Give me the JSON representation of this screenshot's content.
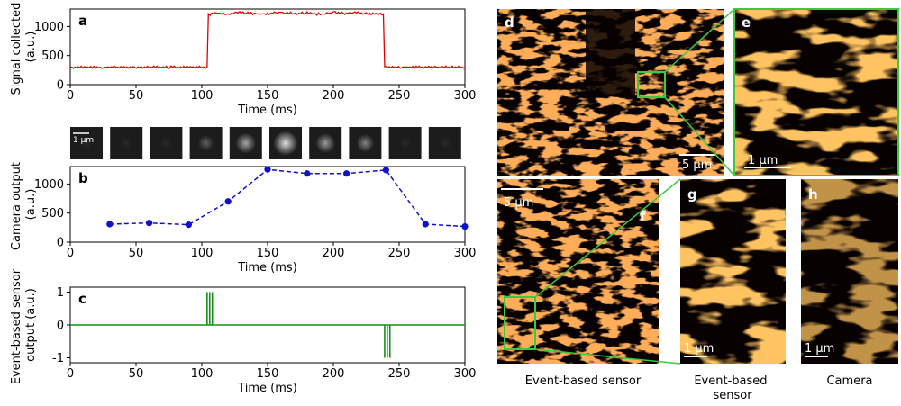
{
  "colors": {
    "signal_line": "#e00000",
    "camera_line": "#1010cc",
    "event_line": "#129212",
    "inset_border": "#3ec83e",
    "micro_background": "#080101"
  },
  "icons": {
    "camera_frame": "psf-spot-icon",
    "micrograph": "microtubule-image-icon"
  },
  "chart_data": [
    {
      "panel": "a",
      "type": "line",
      "xlabel": "Time (ms)",
      "ylabel": "Signal collected (a.u.)",
      "xlim": [
        0,
        300
      ],
      "ylim": [
        0,
        1300
      ],
      "xticks": [
        0,
        50,
        100,
        150,
        200,
        250,
        300
      ],
      "yticks": [
        0,
        500,
        1000
      ],
      "grid": false,
      "series": [
        {
          "x": [
            0,
            103,
            104,
            105,
            110,
            120,
            130,
            140,
            150,
            160,
            170,
            180,
            190,
            200,
            210,
            220,
            230,
            238,
            239,
            240,
            300
          ],
          "values": [
            300,
            300,
            300,
            1200,
            1235,
            1210,
            1240,
            1220,
            1215,
            1245,
            1220,
            1230,
            1210,
            1240,
            1225,
            1235,
            1215,
            1215,
            300,
            300,
            300
          ]
        }
      ]
    },
    {
      "panel": "b",
      "type": "line",
      "xlabel": "Time (ms)",
      "ylabel": "Camera output (a.u.)",
      "xlim": [
        0,
        300
      ],
      "ylim": [
        0,
        1300
      ],
      "xticks": [
        0,
        50,
        100,
        150,
        200,
        250,
        300
      ],
      "yticks": [
        0,
        500,
        1000
      ],
      "grid": false,
      "series": [
        {
          "x": [
            30,
            60,
            90,
            120,
            150,
            180,
            210,
            240,
            270,
            300
          ],
          "values": [
            310,
            330,
            300,
            700,
            1250,
            1180,
            1180,
            1240,
            310,
            270
          ]
        }
      ],
      "camera_frames": {
        "scale_label": "1 μm",
        "intensities": [
          0.06,
          0.06,
          0.06,
          0.3,
          0.6,
          0.85,
          0.55,
          0.45,
          0.06,
          0.06
        ]
      }
    },
    {
      "panel": "c",
      "type": "line",
      "xlabel": "Time (ms)",
      "ylabel": "Event-based sensor output",
      "xlim": [
        0,
        300
      ],
      "ylim": [
        -1.15,
        1.15
      ],
      "xticks": [
        0,
        50,
        100,
        150,
        200,
        250,
        300
      ],
      "yticks": [
        -1,
        0,
        1
      ],
      "grid": false,
      "events": {
        "positive_times": [
          104,
          106,
          108
        ],
        "negative_times": [
          239,
          241,
          243
        ],
        "amplitude": 1
      }
    }
  ],
  "micrographs": {
    "d": {
      "label": "d",
      "scale": "5 μm"
    },
    "e": {
      "label": "e",
      "scale": "1 μm"
    },
    "f": {
      "label": "f",
      "scale": "5 μm",
      "caption": "Event-based sensor"
    },
    "g": {
      "label": "g",
      "scale": "1 μm",
      "caption_line1": "Event-based",
      "caption_line2": "sensor"
    },
    "h": {
      "label": "h",
      "scale": "1 μm",
      "caption": "Camera"
    }
  },
  "panel_labels": {
    "a": "a",
    "b": "b",
    "c": "c"
  },
  "ylabel_lines": {
    "a": [
      "Signal collected",
      "(a.u.)"
    ],
    "b": [
      "Camera output",
      "(a.u.)"
    ],
    "c": [
      "Event-based sensor",
      "output (a.u.)"
    ]
  }
}
